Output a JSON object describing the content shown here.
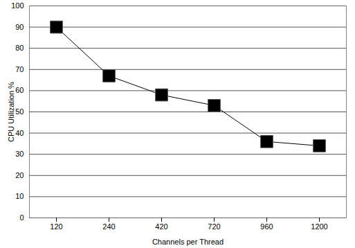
{
  "chart_data": {
    "type": "line",
    "x_label": "Channels per Thread",
    "y_label": "CPU Utilization %",
    "categories": [
      "120",
      "240",
      "420",
      "720",
      "960",
      "1200"
    ],
    "values": [
      90,
      67,
      58,
      53,
      36,
      34
    ],
    "color": "#000000",
    "marker": "square",
    "line_style": "solid",
    "ylim": [
      0,
      100
    ],
    "yticks": [
      0,
      10,
      20,
      30,
      40,
      50,
      60,
      70,
      80,
      90,
      100
    ],
    "grid": true
  }
}
